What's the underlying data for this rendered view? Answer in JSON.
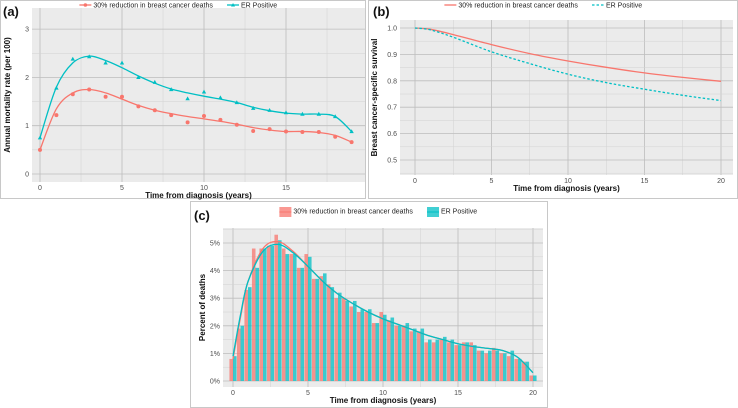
{
  "colors": {
    "red": "#F8766D",
    "teal": "#00BFC4",
    "panel_bg": "#EBEBEB",
    "grid": "#FFFFFF"
  },
  "legend": {
    "red": "30% reduction in breast cancer deaths",
    "teal": "ER Positive"
  },
  "chart_data": [
    {
      "id": "a",
      "panel_label": "(a)",
      "type": "scatter",
      "xlabel": "Time from diagnosis (years)",
      "ylabel": "Annual mortality rate (per 100)",
      "xlim": [
        0,
        19
      ],
      "ylim": [
        0,
        3
      ],
      "xticks": [
        0,
        5,
        10,
        15
      ],
      "yticks": [
        0,
        1,
        2,
        3
      ],
      "x": [
        0,
        1,
        2,
        3,
        4,
        5,
        6,
        7,
        8,
        9,
        10,
        11,
        12,
        13,
        14,
        15,
        16,
        17,
        18,
        19
      ],
      "series": [
        {
          "name": "30% reduction in breast cancer deaths",
          "color": "red",
          "marker": "circle",
          "values": [
            0.5,
            1.22,
            1.65,
            1.75,
            1.6,
            1.6,
            1.4,
            1.32,
            1.22,
            1.07,
            1.2,
            1.12,
            1.02,
            0.89,
            0.93,
            0.88,
            0.87,
            0.87,
            0.77,
            0.66
          ],
          "smooth": [
            0.5,
            1.35,
            1.68,
            1.75,
            1.68,
            1.55,
            1.42,
            1.32,
            1.25,
            1.19,
            1.14,
            1.09,
            1.03,
            0.96,
            0.91,
            0.88,
            0.88,
            0.86,
            0.8,
            0.66
          ]
        },
        {
          "name": "ER Positive",
          "color": "teal",
          "marker": "triangle",
          "values": [
            0.75,
            1.78,
            2.38,
            2.43,
            2.3,
            2.3,
            2.0,
            1.9,
            1.75,
            1.56,
            1.7,
            1.58,
            1.48,
            1.36,
            1.32,
            1.27,
            1.24,
            1.24,
            1.19,
            0.88
          ],
          "smooth": [
            0.75,
            1.8,
            2.3,
            2.44,
            2.35,
            2.2,
            2.03,
            1.88,
            1.76,
            1.68,
            1.61,
            1.55,
            1.48,
            1.38,
            1.31,
            1.26,
            1.24,
            1.24,
            1.19,
            0.88
          ]
        }
      ]
    },
    {
      "id": "b",
      "panel_label": "(b)",
      "type": "line",
      "xlabel": "Time from diagnosis (years)",
      "ylabel": "Breast cancer-specific survival",
      "xlim": [
        0,
        20
      ],
      "ylim": [
        0.45,
        1.02
      ],
      "xticks": [
        0,
        5,
        10,
        15,
        20
      ],
      "yticks": [
        0.5,
        0.6,
        0.7,
        0.8,
        0.9,
        1.0
      ],
      "ytick_labels": [
        "0.5",
        "0.6",
        "0.7",
        "0.8",
        "0.9",
        "1.0"
      ],
      "x": [
        0,
        1,
        2.5,
        5,
        7.5,
        10,
        12.5,
        15,
        17.5,
        20
      ],
      "series": [
        {
          "name": "30% reduction in breast cancer deaths",
          "color": "red",
          "dash": "solid",
          "values": [
            1.0,
            0.995,
            0.975,
            0.937,
            0.903,
            0.875,
            0.851,
            0.83,
            0.813,
            0.798
          ]
        },
        {
          "name": "ER Positive",
          "color": "teal",
          "dash": "dashed",
          "values": [
            1.0,
            0.993,
            0.965,
            0.91,
            0.865,
            0.825,
            0.793,
            0.768,
            0.745,
            0.725
          ]
        }
      ]
    },
    {
      "id": "c",
      "panel_label": "(c)",
      "type": "bar",
      "xlabel": "Time from diagnosis (years)",
      "ylabel": "Percent of deaths",
      "xlim": [
        0,
        20
      ],
      "ylim": [
        0,
        5.5
      ],
      "xticks": [
        0,
        5,
        10,
        15,
        20
      ],
      "yticks": [
        0,
        1,
        2,
        3,
        4,
        5
      ],
      "ytick_labels": [
        "0%",
        "1%",
        "2%",
        "3%",
        "4%",
        "5%"
      ],
      "bins": [
        0,
        0.5,
        1,
        1.5,
        2,
        2.5,
        3,
        3.5,
        4,
        4.5,
        5,
        5.5,
        6,
        6.5,
        7,
        7.5,
        8,
        8.5,
        9,
        9.5,
        10,
        10.5,
        11,
        11.5,
        12,
        12.5,
        13,
        13.5,
        14,
        14.5,
        15,
        15.5,
        16,
        16.5,
        17,
        17.5,
        18,
        18.5,
        19,
        19.5,
        20
      ],
      "series": [
        {
          "name": "30% reduction in breast cancer deaths",
          "color": "red",
          "values": [
            0.8,
            1.9,
            3.3,
            4.8,
            4.8,
            4.9,
            5.3,
            4.8,
            4.6,
            4.1,
            4.6,
            3.7,
            3.8,
            3.5,
            3.0,
            3.0,
            2.7,
            2.5,
            2.5,
            2.1,
            2.5,
            2.2,
            2.0,
            2.0,
            1.8,
            1.8,
            1.4,
            1.4,
            1.5,
            1.4,
            1.3,
            1.4,
            1.4,
            1.1,
            1.0,
            1.2,
            1.0,
            0.9,
            0.8,
            0.7,
            0.2
          ],
          "smooth_x": [
            0,
            0.5,
            1,
            2,
            3,
            4,
            5,
            6,
            7,
            8,
            9,
            10,
            11,
            12,
            13,
            14,
            15,
            16,
            17,
            18,
            19,
            20
          ],
          "smooth": [
            0.8,
            2.3,
            3.6,
            4.8,
            5.05,
            4.7,
            4.15,
            3.6,
            3.15,
            2.8,
            2.5,
            2.25,
            2.05,
            1.85,
            1.65,
            1.5,
            1.35,
            1.25,
            1.18,
            1.1,
            0.85,
            0.3
          ]
        },
        {
          "name": "ER Positive",
          "color": "teal",
          "values": [
            0.9,
            2.0,
            3.4,
            4.1,
            4.8,
            4.9,
            5.1,
            4.6,
            4.6,
            4.1,
            4.5,
            3.7,
            3.9,
            3.4,
            3.2,
            2.9,
            2.9,
            2.6,
            2.6,
            2.1,
            2.4,
            2.3,
            2.0,
            2.1,
            1.9,
            1.9,
            1.5,
            1.5,
            1.6,
            1.5,
            1.3,
            1.4,
            1.3,
            1.1,
            1.1,
            1.1,
            1.0,
            1.1,
            0.8,
            0.7,
            0.2
          ],
          "smooth_x": [
            0,
            0.5,
            1,
            2,
            3,
            4,
            5,
            6,
            7,
            8,
            9,
            10,
            11,
            12,
            13,
            14,
            15,
            16,
            17,
            18,
            19,
            20
          ],
          "smooth": [
            0.9,
            2.4,
            3.6,
            4.7,
            4.95,
            4.65,
            4.15,
            3.6,
            3.15,
            2.8,
            2.5,
            2.25,
            2.05,
            1.85,
            1.65,
            1.5,
            1.35,
            1.25,
            1.18,
            1.1,
            0.85,
            0.3
          ]
        }
      ]
    }
  ]
}
